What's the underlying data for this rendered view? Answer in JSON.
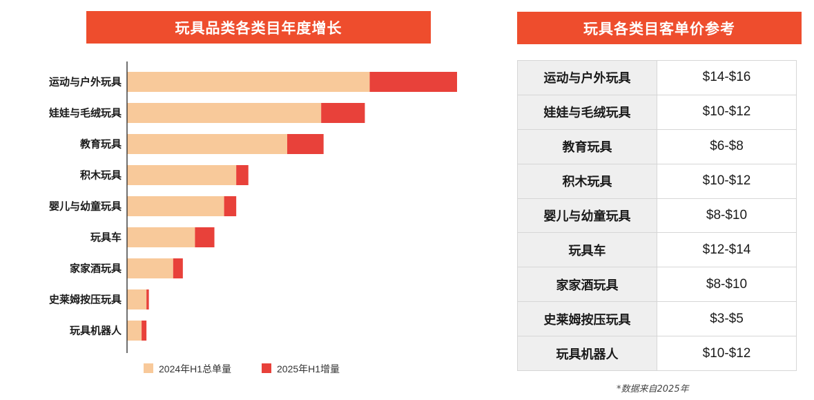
{
  "colors": {
    "header": "#ee4d2d",
    "base": "#f8c99a",
    "increment": "#e8413a"
  },
  "chart_title": "玩具品类各类目年度增长",
  "table_title": "玩具各类目客单价参考",
  "chart_data": {
    "type": "bar",
    "orientation": "horizontal",
    "stacked": true,
    "title": "玩具品类各类目年度增长",
    "xlabel": "",
    "ylabel": "",
    "categories": [
      "运动与户外玩具",
      "娃娃与毛绒玩具",
      "教育玩具",
      "积木玩具",
      "婴儿与幼童玩具",
      "玩具车",
      "家家酒玩具",
      "史莱姆按压玩具",
      "玩具机器人"
    ],
    "series": [
      {
        "name": "2024年H1总单量",
        "color": "#f8c99a",
        "values": [
          100,
          80,
          66,
          45,
          40,
          28,
          19,
          8,
          6
        ]
      },
      {
        "name": "2025年H1增量",
        "color": "#e8413a",
        "values": [
          36,
          18,
          15,
          5,
          5,
          8,
          4,
          1,
          2
        ]
      }
    ],
    "xlim": [
      0,
      136
    ],
    "legend_position": "bottom",
    "grid": false,
    "axis_ticks_shown": false
  },
  "table": {
    "rows": [
      {
        "category": "运动与户外玩具",
        "price": "$14-$16"
      },
      {
        "category": "娃娃与毛绒玩具",
        "price": "$10-$12"
      },
      {
        "category": "教育玩具",
        "price": "$6-$8"
      },
      {
        "category": "积木玩具",
        "price": "$10-$12"
      },
      {
        "category": "婴儿与幼童玩具",
        "price": "$8-$10"
      },
      {
        "category": "玩具车",
        "price": "$12-$14"
      },
      {
        "category": "家家酒玩具",
        "price": "$8-$10"
      },
      {
        "category": "史莱姆按压玩具",
        "price": "$3-$5"
      },
      {
        "category": "玩具机器人",
        "price": "$10-$12"
      }
    ]
  },
  "source_note": "*数据来自2025年"
}
